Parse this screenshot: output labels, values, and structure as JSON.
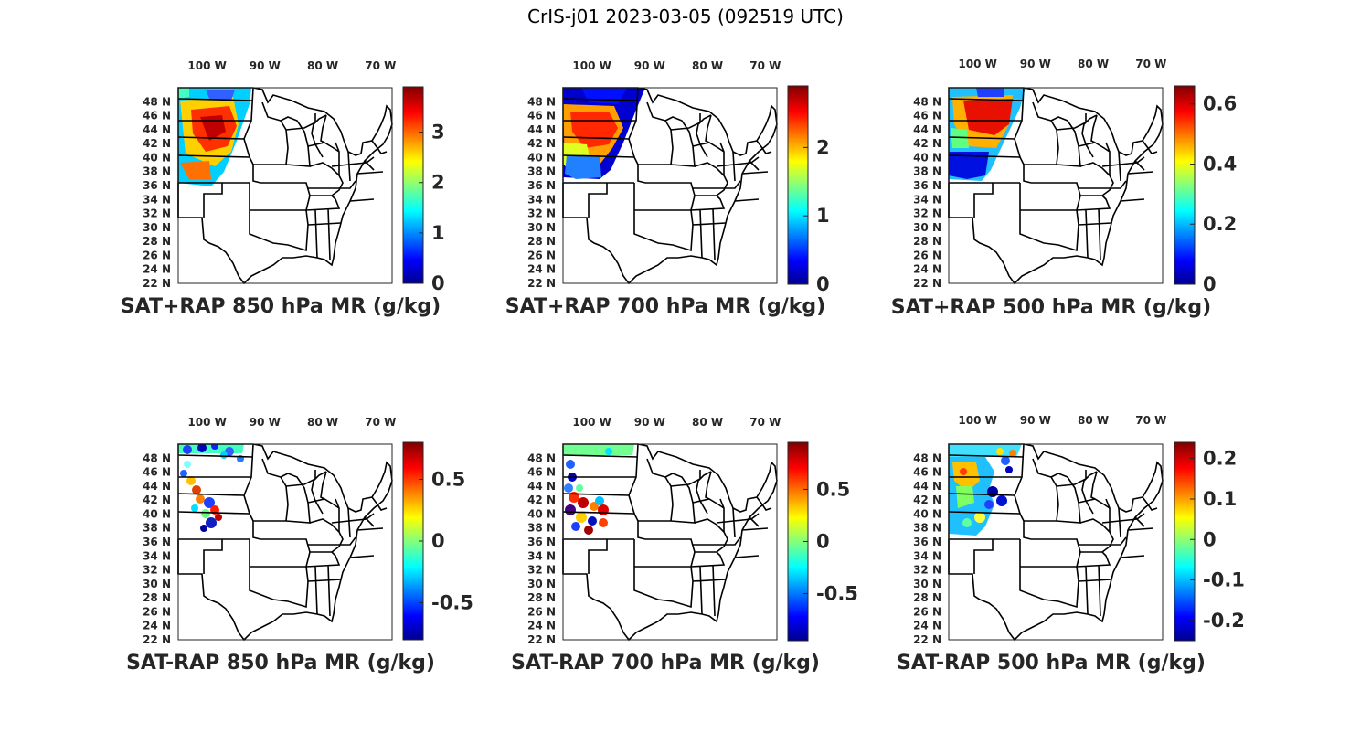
{
  "figure_title": "CrIS-j01 2023-03-05 (092519 UTC)",
  "lon_labels": [
    {
      "lon": -100,
      "text": "100 W"
    },
    {
      "lon": -90,
      "text": "90 W"
    },
    {
      "lon": -80,
      "text": "80 W"
    },
    {
      "lon": -70,
      "text": "70 W"
    }
  ],
  "lat_labels": [
    {
      "lat": 48,
      "text": "48 N"
    },
    {
      "lat": 46,
      "text": "46 N"
    },
    {
      "lat": 44,
      "text": "44 N"
    },
    {
      "lat": 42,
      "text": "42 N"
    },
    {
      "lat": 40,
      "text": "40 N"
    },
    {
      "lat": 38,
      "text": "38 N"
    },
    {
      "lat": 36,
      "text": "36 N"
    },
    {
      "lat": 34,
      "text": "34 N"
    },
    {
      "lat": 32,
      "text": "32 N"
    },
    {
      "lat": 30,
      "text": "30 N"
    },
    {
      "lat": 28,
      "text": "28 N"
    },
    {
      "lat": 26,
      "text": "26 N"
    },
    {
      "lat": 24,
      "text": "24 N"
    },
    {
      "lat": 22,
      "text": "22 N"
    }
  ],
  "map_extent": {
    "lon": [
      -105,
      -68
    ],
    "lat": [
      22,
      50
    ]
  },
  "colormap": "jet",
  "colors": {
    "jet": [
      "#00008f",
      "#0000ff",
      "#00ffff",
      "#ffff00",
      "#ff0000",
      "#800000"
    ]
  },
  "panels": [
    {
      "title": "SAT+RAP 850 hPa MR (g/kg)",
      "clim": [
        0,
        3.9
      ],
      "ticks": [
        0,
        1,
        2,
        3
      ],
      "tick_labels": [
        "0",
        "1",
        "2",
        "3"
      ]
    },
    {
      "title": "SAT+RAP 700 hPa MR (g/kg)",
      "clim": [
        0,
        2.9
      ],
      "ticks": [
        0,
        1,
        2
      ],
      "tick_labels": [
        "0",
        "1",
        "2"
      ]
    },
    {
      "title": "SAT+RAP 500 hPa MR (g/kg)",
      "clim": [
        0,
        0.66
      ],
      "ticks": [
        0,
        0.2,
        0.4,
        0.6
      ],
      "tick_labels": [
        "0",
        "0.2",
        "0.4",
        "0.6"
      ]
    },
    {
      "title": "SAT-RAP 850 hPa MR (g/kg)",
      "clim": [
        -0.8,
        0.8
      ],
      "ticks": [
        -0.5,
        0,
        0.5
      ],
      "tick_labels": [
        "-0.5",
        "0",
        "0.5"
      ]
    },
    {
      "title": "SAT-RAP 700 hPa MR (g/kg)",
      "clim": [
        -0.95,
        0.95
      ],
      "ticks": [
        -0.5,
        0,
        0.5
      ],
      "tick_labels": [
        "-0.5",
        "0",
        "0.5"
      ]
    },
    {
      "title": "SAT-RAP 500 hPa MR (g/kg)",
      "clim": [
        -0.25,
        0.24
      ],
      "ticks": [
        -0.2,
        -0.1,
        0,
        0.1,
        0.2
      ],
      "tick_labels": [
        "-0.2",
        "-0.1",
        "0",
        "0.1",
        "0.2"
      ]
    }
  ]
}
